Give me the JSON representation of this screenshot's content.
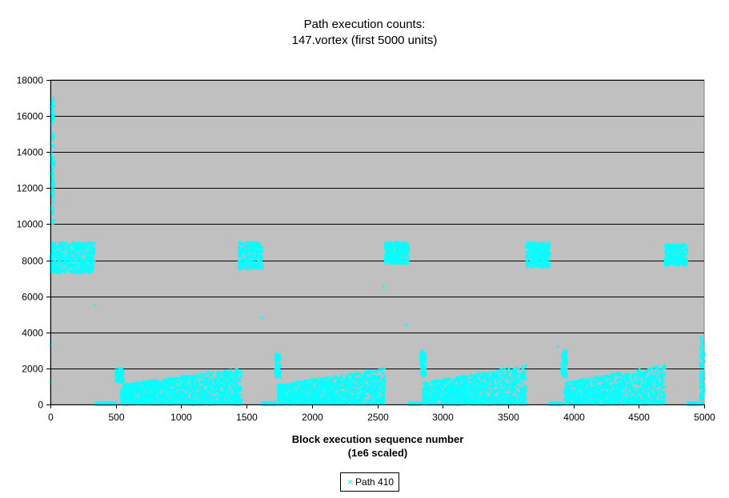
{
  "chart_data": {
    "type": "scatter",
    "title": "Path execution counts:",
    "subtitle": "147.vortex (first 5000 units)",
    "xlabel": "Block execution sequence number",
    "xlabel_sub": "(1e6 scaled)",
    "ylabel": "",
    "xlim": [
      0,
      5000
    ],
    "ylim": [
      0,
      18000
    ],
    "x_ticks": [
      0,
      500,
      1000,
      1500,
      2000,
      2500,
      3000,
      3500,
      4000,
      4500,
      5000
    ],
    "y_ticks": [
      0,
      2000,
      4000,
      6000,
      8000,
      10000,
      12000,
      14000,
      16000,
      18000
    ],
    "grid": "horizontal",
    "plot_background": "#c0c0c0",
    "legend_position": "bottom-center",
    "series": [
      {
        "name": "Path 410",
        "color": "#00ffff",
        "marker": "x",
        "clusters": [
          {
            "x": [
              0,
              30
            ],
            "y": [
              10000,
              17000
            ]
          },
          {
            "x": [
              0,
              340
            ],
            "y": [
              7300,
              9000
            ]
          },
          {
            "x": [
              340,
              500
            ],
            "y": [
              0,
              100
            ]
          },
          {
            "x": [
              500,
              560
            ],
            "y": [
              1200,
              2000
            ]
          },
          {
            "x": [
              540,
              1460
            ],
            "y": [
              0,
              2000
            ]
          },
          {
            "x": [
              1440,
              1620
            ],
            "y": [
              7500,
              9000
            ]
          },
          {
            "x": [
              1620,
              1720
            ],
            "y": [
              0,
              100
            ]
          },
          {
            "x": [
              1720,
              1760
            ],
            "y": [
              1500,
              2800
            ]
          },
          {
            "x": [
              1740,
              2560
            ],
            "y": [
              0,
              2000
            ]
          },
          {
            "x": [
              2560,
              2740
            ],
            "y": [
              7800,
              9000
            ]
          },
          {
            "x": [
              2740,
              2830
            ],
            "y": [
              0,
              100
            ]
          },
          {
            "x": [
              2830,
              2870
            ],
            "y": [
              1500,
              3000
            ]
          },
          {
            "x": [
              2850,
              3640
            ],
            "y": [
              0,
              2200
            ]
          },
          {
            "x": [
              3640,
              3820
            ],
            "y": [
              7600,
              9000
            ]
          },
          {
            "x": [
              3820,
              3910
            ],
            "y": [
              0,
              100
            ]
          },
          {
            "x": [
              3910,
              3950
            ],
            "y": [
              1500,
              3000
            ]
          },
          {
            "x": [
              3930,
              4700
            ],
            "y": [
              0,
              2200
            ]
          },
          {
            "x": [
              4700,
              4870
            ],
            "y": [
              7700,
              8900
            ]
          },
          {
            "x": [
              4870,
              4970
            ],
            "y": [
              0,
              100
            ]
          },
          {
            "x": [
              4970,
              5000
            ],
            "y": [
              0,
              3800
            ]
          }
        ],
        "outliers": [
          {
            "x": 340,
            "y": 5500
          },
          {
            "x": 1620,
            "y": 4800
          },
          {
            "x": 2550,
            "y": 6500
          },
          {
            "x": 2720,
            "y": 4400
          },
          {
            "x": 3880,
            "y": 3200
          },
          {
            "x": 0,
            "y": 3300
          },
          {
            "x": 0,
            "y": 1200
          }
        ]
      }
    ]
  }
}
